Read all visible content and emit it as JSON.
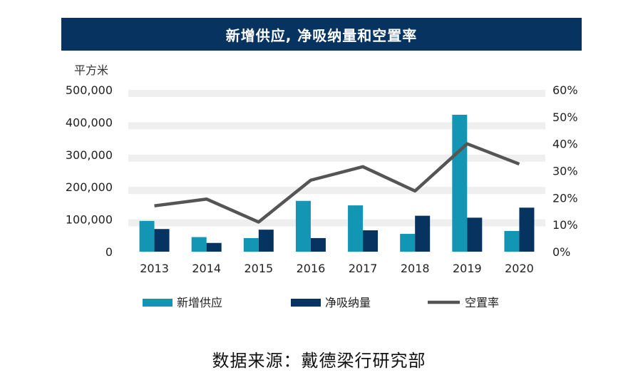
{
  "title": "新增供应, 净吸纳量和空置率",
  "source": "数据来源：戴德梁行研究部",
  "chart_data": {
    "type": "bar",
    "title": "新增供应, 净吸纳量和空置率",
    "categories": [
      "2013",
      "2014",
      "2015",
      "2016",
      "2017",
      "2018",
      "2019",
      "2020"
    ],
    "series": [
      {
        "name": "新增供应",
        "type": "bar",
        "axis": "left",
        "color": "#1296b3",
        "values": [
          95000,
          45000,
          42000,
          157000,
          143000,
          55000,
          423000,
          64000
        ]
      },
      {
        "name": "净吸纳量",
        "type": "bar",
        "axis": "left",
        "color": "#06335f",
        "values": [
          70000,
          27000,
          68000,
          42000,
          66000,
          111000,
          105000,
          136000
        ]
      },
      {
        "name": "空置率",
        "type": "line",
        "axis": "right",
        "color": "#555555",
        "values": [
          0.17,
          0.195,
          0.11,
          0.265,
          0.315,
          0.225,
          0.4,
          0.325
        ]
      }
    ],
    "ylabel": "平方米",
    "ylim": [
      0,
      500000
    ],
    "y_ticks": [
      "0",
      "100,000",
      "200,000",
      "300,000",
      "400,000",
      "500,000"
    ],
    "y2lim": [
      0,
      0.6
    ],
    "y2_ticks": [
      "0%",
      "10%",
      "20%",
      "30%",
      "40%",
      "50%",
      "60%"
    ],
    "grid": "horizontal bands",
    "legend_position": "bottom"
  }
}
